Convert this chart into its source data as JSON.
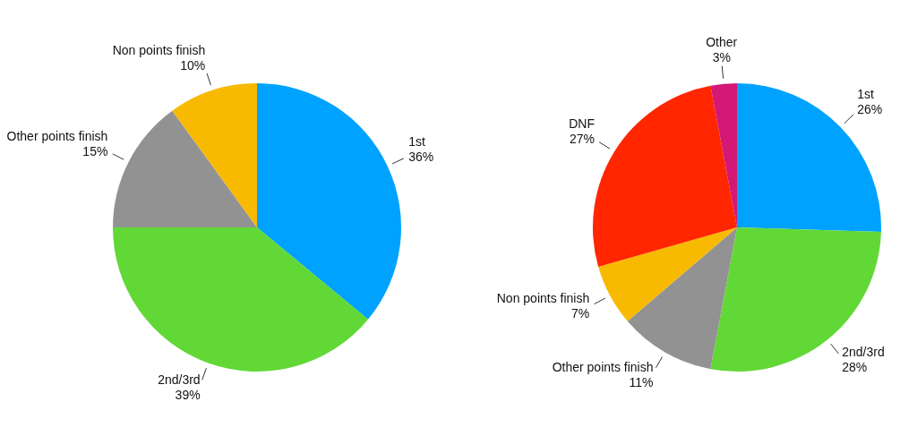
{
  "chart_data": [
    {
      "type": "pie",
      "categories": [
        "1st",
        "2nd/3rd",
        "Other points finish",
        "Non points finish"
      ],
      "values": [
        36,
        39,
        15,
        10
      ],
      "colors": [
        "#00a2ff",
        "#61d836",
        "#929292",
        "#f8ba00"
      ],
      "value_labels": [
        "36%",
        "39%",
        "15%",
        "10%"
      ]
    },
    {
      "type": "pie",
      "categories": [
        "1st",
        "2nd/3rd",
        "Other points finish",
        "Non points finish",
        "DNF",
        "Other"
      ],
      "values": [
        26,
        28,
        11,
        7,
        27,
        3
      ],
      "colors": [
        "#00a2ff",
        "#61d836",
        "#929292",
        "#f8ba00",
        "#ff2600",
        "#d31876"
      ],
      "value_labels": [
        "26%",
        "28%",
        "11%",
        "7%",
        "27%",
        "3%"
      ]
    }
  ]
}
